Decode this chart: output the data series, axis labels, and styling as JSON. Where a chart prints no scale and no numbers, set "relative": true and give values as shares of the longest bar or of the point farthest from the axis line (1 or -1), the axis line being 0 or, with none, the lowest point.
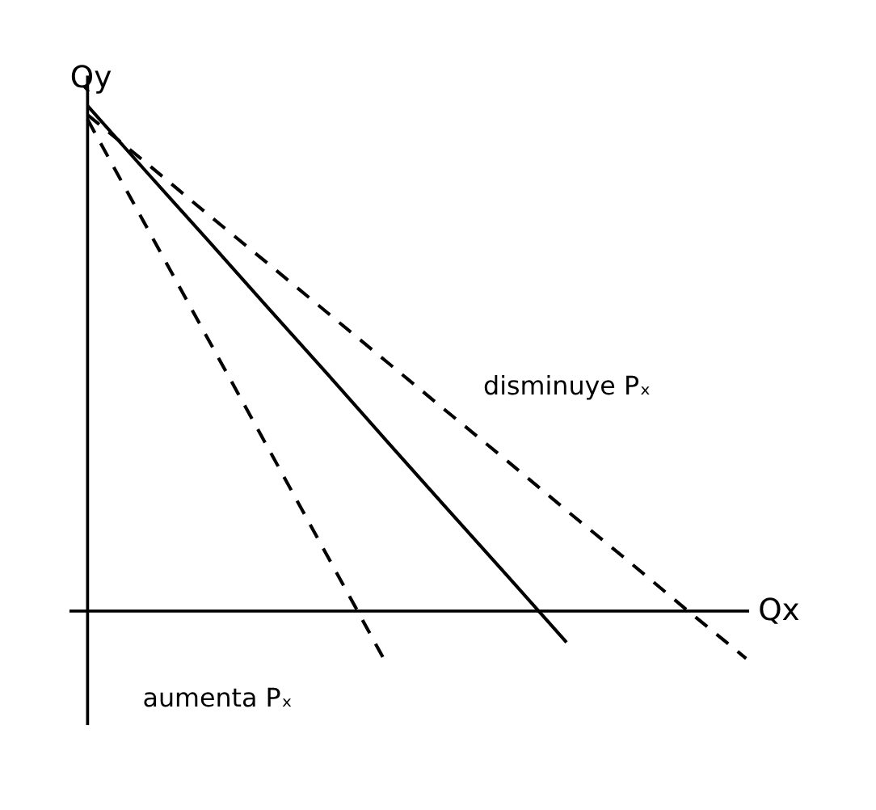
{
  "chart_data": {
    "type": "line",
    "relative": true,
    "xlabel": "Qx",
    "ylabel": "Qy",
    "tick_labels": false,
    "marker": "none",
    "categories": [
      null,
      null,
      null,
      null,
      null,
      null,
      null,
      null,
      null,
      null,
      null,
      null
    ],
    "series": [
      {
        "color": "#000000",
        "line_style": "solid",
        "values": [
          1,
          0.867,
          0.735,
          0.602,
          0.47,
          0.336,
          0.203,
          0.071,
          -0.062,
          null,
          null,
          null
        ]
      },
      {
        "color": "#000000",
        "line_style": "dashed",
        "values": [
          0.982,
          0.885,
          0.786,
          0.689,
          0.591,
          0.493,
          0.395,
          0.298,
          0.199,
          0.102,
          0.003,
          -0.094
        ]
      },
      {
        "color": "#000000",
        "line_style": "dashed",
        "values": [
          0.973,
          0.757,
          0.541,
          0.326,
          0.11,
          -0.106,
          null,
          null,
          null,
          null,
          null,
          null
        ]
      }
    ],
    "annotations": [
      "disminuye Pₓ",
      "aumenta Pₓ"
    ]
  }
}
